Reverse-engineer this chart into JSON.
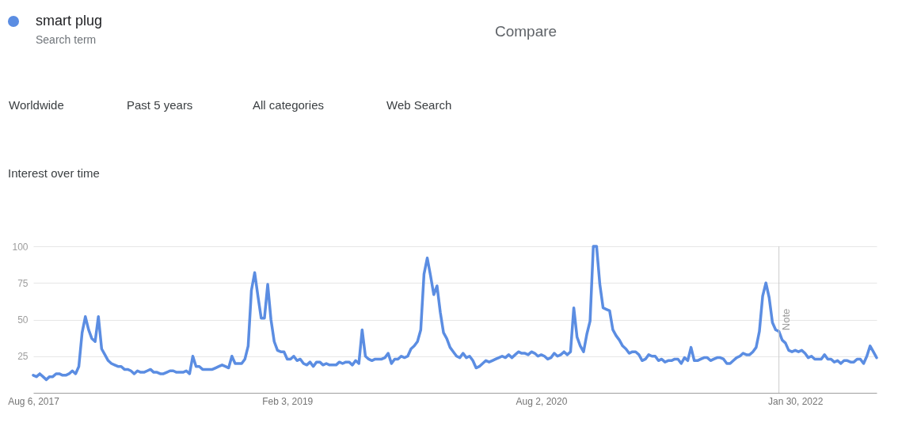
{
  "chart_data": {
    "type": "line",
    "title": "Interest over time",
    "annotations": [
      "Search term",
      "Compare",
      "Worldwide",
      "Past 5 years",
      "All categories",
      "Web Search"
    ],
    "x": [
      "2017-08-06",
      "2017-08-13",
      "2017-08-20",
      "2017-08-27",
      "2017-09-03",
      "2017-09-10",
      "2017-09-17",
      "2017-09-24",
      "2017-10-01",
      "2017-10-08",
      "2017-10-15",
      "2017-10-22",
      "2017-10-29",
      "2017-11-05",
      "2017-11-12",
      "2017-11-19",
      "2017-11-26",
      "2017-12-03",
      "2017-12-10",
      "2017-12-17",
      "2017-12-24",
      "2017-12-31",
      "2018-01-07",
      "2018-01-14",
      "2018-01-21",
      "2018-01-28",
      "2018-02-04",
      "2018-02-11",
      "2018-02-18",
      "2018-02-25",
      "2018-03-04",
      "2018-03-11",
      "2018-03-18",
      "2018-03-25",
      "2018-04-01",
      "2018-04-08",
      "2018-04-15",
      "2018-04-22",
      "2018-04-29",
      "2018-05-06",
      "2018-05-13",
      "2018-05-20",
      "2018-05-27",
      "2018-06-03",
      "2018-06-10",
      "2018-06-17",
      "2018-06-24",
      "2018-07-01",
      "2018-07-08",
      "2018-07-15",
      "2018-07-22",
      "2018-07-29",
      "2018-08-05",
      "2018-08-12",
      "2018-08-19",
      "2018-08-26",
      "2018-09-02",
      "2018-09-09",
      "2018-09-16",
      "2018-09-23",
      "2018-09-30",
      "2018-10-07",
      "2018-10-14",
      "2018-10-21",
      "2018-10-28",
      "2018-11-04",
      "2018-11-11",
      "2018-11-18",
      "2018-11-25",
      "2018-12-02",
      "2018-12-09",
      "2018-12-16",
      "2018-12-23",
      "2018-12-30",
      "2019-01-06",
      "2019-01-13",
      "2019-01-20",
      "2019-01-27",
      "2019-02-03",
      "2019-02-10",
      "2019-02-17",
      "2019-02-24",
      "2019-03-03",
      "2019-03-10",
      "2019-03-17",
      "2019-03-24",
      "2019-03-31",
      "2019-04-07",
      "2019-04-14",
      "2019-04-21",
      "2019-04-28",
      "2019-05-05",
      "2019-05-12",
      "2019-05-19",
      "2019-05-26",
      "2019-06-02",
      "2019-06-09",
      "2019-06-16",
      "2019-06-23",
      "2019-06-30",
      "2019-07-07",
      "2019-07-14",
      "2019-07-21",
      "2019-07-28",
      "2019-08-04",
      "2019-08-11",
      "2019-08-18",
      "2019-08-25",
      "2019-09-01",
      "2019-09-08",
      "2019-09-15",
      "2019-09-22",
      "2019-09-29",
      "2019-10-06",
      "2019-10-13",
      "2019-10-20",
      "2019-10-27",
      "2019-11-03",
      "2019-11-10",
      "2019-11-17",
      "2019-11-24",
      "2019-12-01",
      "2019-12-08",
      "2019-12-15",
      "2019-12-22",
      "2019-12-29",
      "2020-01-05",
      "2020-01-12",
      "2020-01-19",
      "2020-01-26",
      "2020-02-02",
      "2020-02-09",
      "2020-02-16",
      "2020-02-23",
      "2020-03-01",
      "2020-03-08",
      "2020-03-15",
      "2020-03-22",
      "2020-03-29",
      "2020-04-05",
      "2020-04-12",
      "2020-04-19",
      "2020-04-26",
      "2020-05-03",
      "2020-05-10",
      "2020-05-17",
      "2020-05-24",
      "2020-05-31",
      "2020-06-07",
      "2020-06-14",
      "2020-06-21",
      "2020-06-28",
      "2020-07-05",
      "2020-07-12",
      "2020-07-19",
      "2020-07-26",
      "2020-08-02",
      "2020-08-09",
      "2020-08-16",
      "2020-08-23",
      "2020-08-30",
      "2020-09-06",
      "2020-09-13",
      "2020-09-20",
      "2020-09-27",
      "2020-10-04",
      "2020-10-11",
      "2020-10-18",
      "2020-10-25",
      "2020-11-01",
      "2020-11-08",
      "2020-11-15",
      "2020-11-22",
      "2020-11-29",
      "2020-12-06",
      "2020-12-13",
      "2020-12-20",
      "2020-12-27",
      "2021-01-03",
      "2021-01-10",
      "2021-01-17",
      "2021-01-24",
      "2021-01-31",
      "2021-02-07",
      "2021-02-14",
      "2021-02-21",
      "2021-02-28",
      "2021-03-07",
      "2021-03-14",
      "2021-03-21",
      "2021-03-28",
      "2021-04-04",
      "2021-04-11",
      "2021-04-18",
      "2021-04-25",
      "2021-05-02",
      "2021-05-09",
      "2021-05-16",
      "2021-05-23",
      "2021-05-30",
      "2021-06-06",
      "2021-06-13",
      "2021-06-20",
      "2021-06-27",
      "2021-07-04",
      "2021-07-11",
      "2021-07-18",
      "2021-07-25",
      "2021-08-01",
      "2021-08-08",
      "2021-08-15",
      "2021-08-22",
      "2021-08-29",
      "2021-09-05",
      "2021-09-12",
      "2021-09-19",
      "2021-09-26",
      "2021-10-03",
      "2021-10-10",
      "2021-10-17",
      "2021-10-24",
      "2021-10-31",
      "2021-11-07",
      "2021-11-14",
      "2021-11-21",
      "2021-11-28",
      "2021-12-05",
      "2021-12-12",
      "2021-12-19",
      "2021-12-26",
      "2022-01-02",
      "2022-01-09",
      "2022-01-16",
      "2022-01-23",
      "2022-01-30",
      "2022-02-06",
      "2022-02-13",
      "2022-02-20",
      "2022-02-27",
      "2022-03-06",
      "2022-03-13",
      "2022-03-20",
      "2022-03-27",
      "2022-04-03",
      "2022-04-10",
      "2022-04-17",
      "2022-04-24",
      "2022-05-01",
      "2022-05-08",
      "2022-05-15",
      "2022-05-22",
      "2022-05-29",
      "2022-06-05",
      "2022-06-12",
      "2022-06-19",
      "2022-06-26",
      "2022-07-03",
      "2022-07-10",
      "2022-07-17",
      "2022-07-24"
    ],
    "series": [
      {
        "name": "smart plug",
        "color": "#5b8de2",
        "values": [
          12,
          11,
          13,
          11,
          9,
          11,
          11,
          13,
          13,
          12,
          12,
          13,
          15,
          13,
          18,
          41,
          52,
          43,
          37,
          35,
          52,
          30,
          26,
          22,
          20,
          19,
          18,
          18,
          16,
          16,
          15,
          13,
          15,
          14,
          14,
          15,
          16,
          14,
          14,
          13,
          13,
          14,
          15,
          15,
          14,
          14,
          14,
          15,
          13,
          25,
          18,
          18,
          16,
          16,
          16,
          16,
          17,
          18,
          19,
          18,
          17,
          25,
          20,
          20,
          20,
          23,
          32,
          70,
          82,
          66,
          51,
          51,
          74,
          50,
          35,
          29,
          28,
          28,
          23,
          23,
          25,
          22,
          23,
          20,
          19,
          21,
          18,
          21,
          21,
          19,
          20,
          19,
          19,
          19,
          21,
          20,
          21,
          21,
          19,
          22,
          20,
          43,
          25,
          23,
          22,
          23,
          23,
          23,
          24,
          27,
          20,
          23,
          23,
          25,
          24,
          25,
          30,
          32,
          35,
          43,
          81,
          92,
          80,
          67,
          73,
          55,
          41,
          37,
          31,
          28,
          25,
          24,
          27,
          24,
          25,
          22,
          17,
          18,
          20,
          22,
          21,
          22,
          23,
          24,
          25,
          24,
          26,
          24,
          26,
          28,
          27,
          27,
          26,
          28,
          27,
          25,
          26,
          25,
          23,
          24,
          27,
          25,
          26,
          28,
          26,
          28,
          58,
          38,
          32,
          28,
          40,
          49,
          100,
          100,
          74,
          58,
          57,
          56,
          43,
          39,
          36,
          32,
          30,
          27,
          28,
          28,
          26,
          22,
          23,
          26,
          25,
          25,
          22,
          23,
          21,
          22,
          22,
          23,
          23,
          20,
          24,
          22,
          31,
          22,
          22,
          23,
          24,
          24,
          22,
          23,
          24,
          24,
          23,
          20,
          20,
          22,
          24,
          25,
          27,
          26,
          26,
          28,
          31,
          42,
          66,
          75,
          65,
          48,
          43,
          42,
          36,
          34,
          29,
          28,
          29,
          28,
          29,
          27,
          24,
          25,
          23,
          23,
          23,
          26,
          23,
          23,
          21,
          22,
          20,
          22,
          22,
          21,
          21,
          23,
          23,
          20,
          25,
          32,
          28,
          24
        ]
      }
    ],
    "xlim": [
      "2017-08-06",
      "2022-07-24"
    ],
    "xticks": [
      {
        "value": "2017-08-06",
        "label": "Aug 6, 2017"
      },
      {
        "value": "2019-02-03",
        "label": "Feb 3, 2019"
      },
      {
        "value": "2020-08-02",
        "label": "Aug 2, 2020"
      },
      {
        "value": "2022-01-30",
        "label": "Jan 30, 2022"
      }
    ],
    "ylim": [
      0,
      100
    ],
    "yticks": [
      25,
      50,
      75,
      100
    ],
    "ref_lines": [
      {
        "axis": "x",
        "value": "2021-12-26",
        "label": "Note",
        "color": "#cccccc"
      }
    ],
    "grid": "y",
    "legend": "top left"
  }
}
